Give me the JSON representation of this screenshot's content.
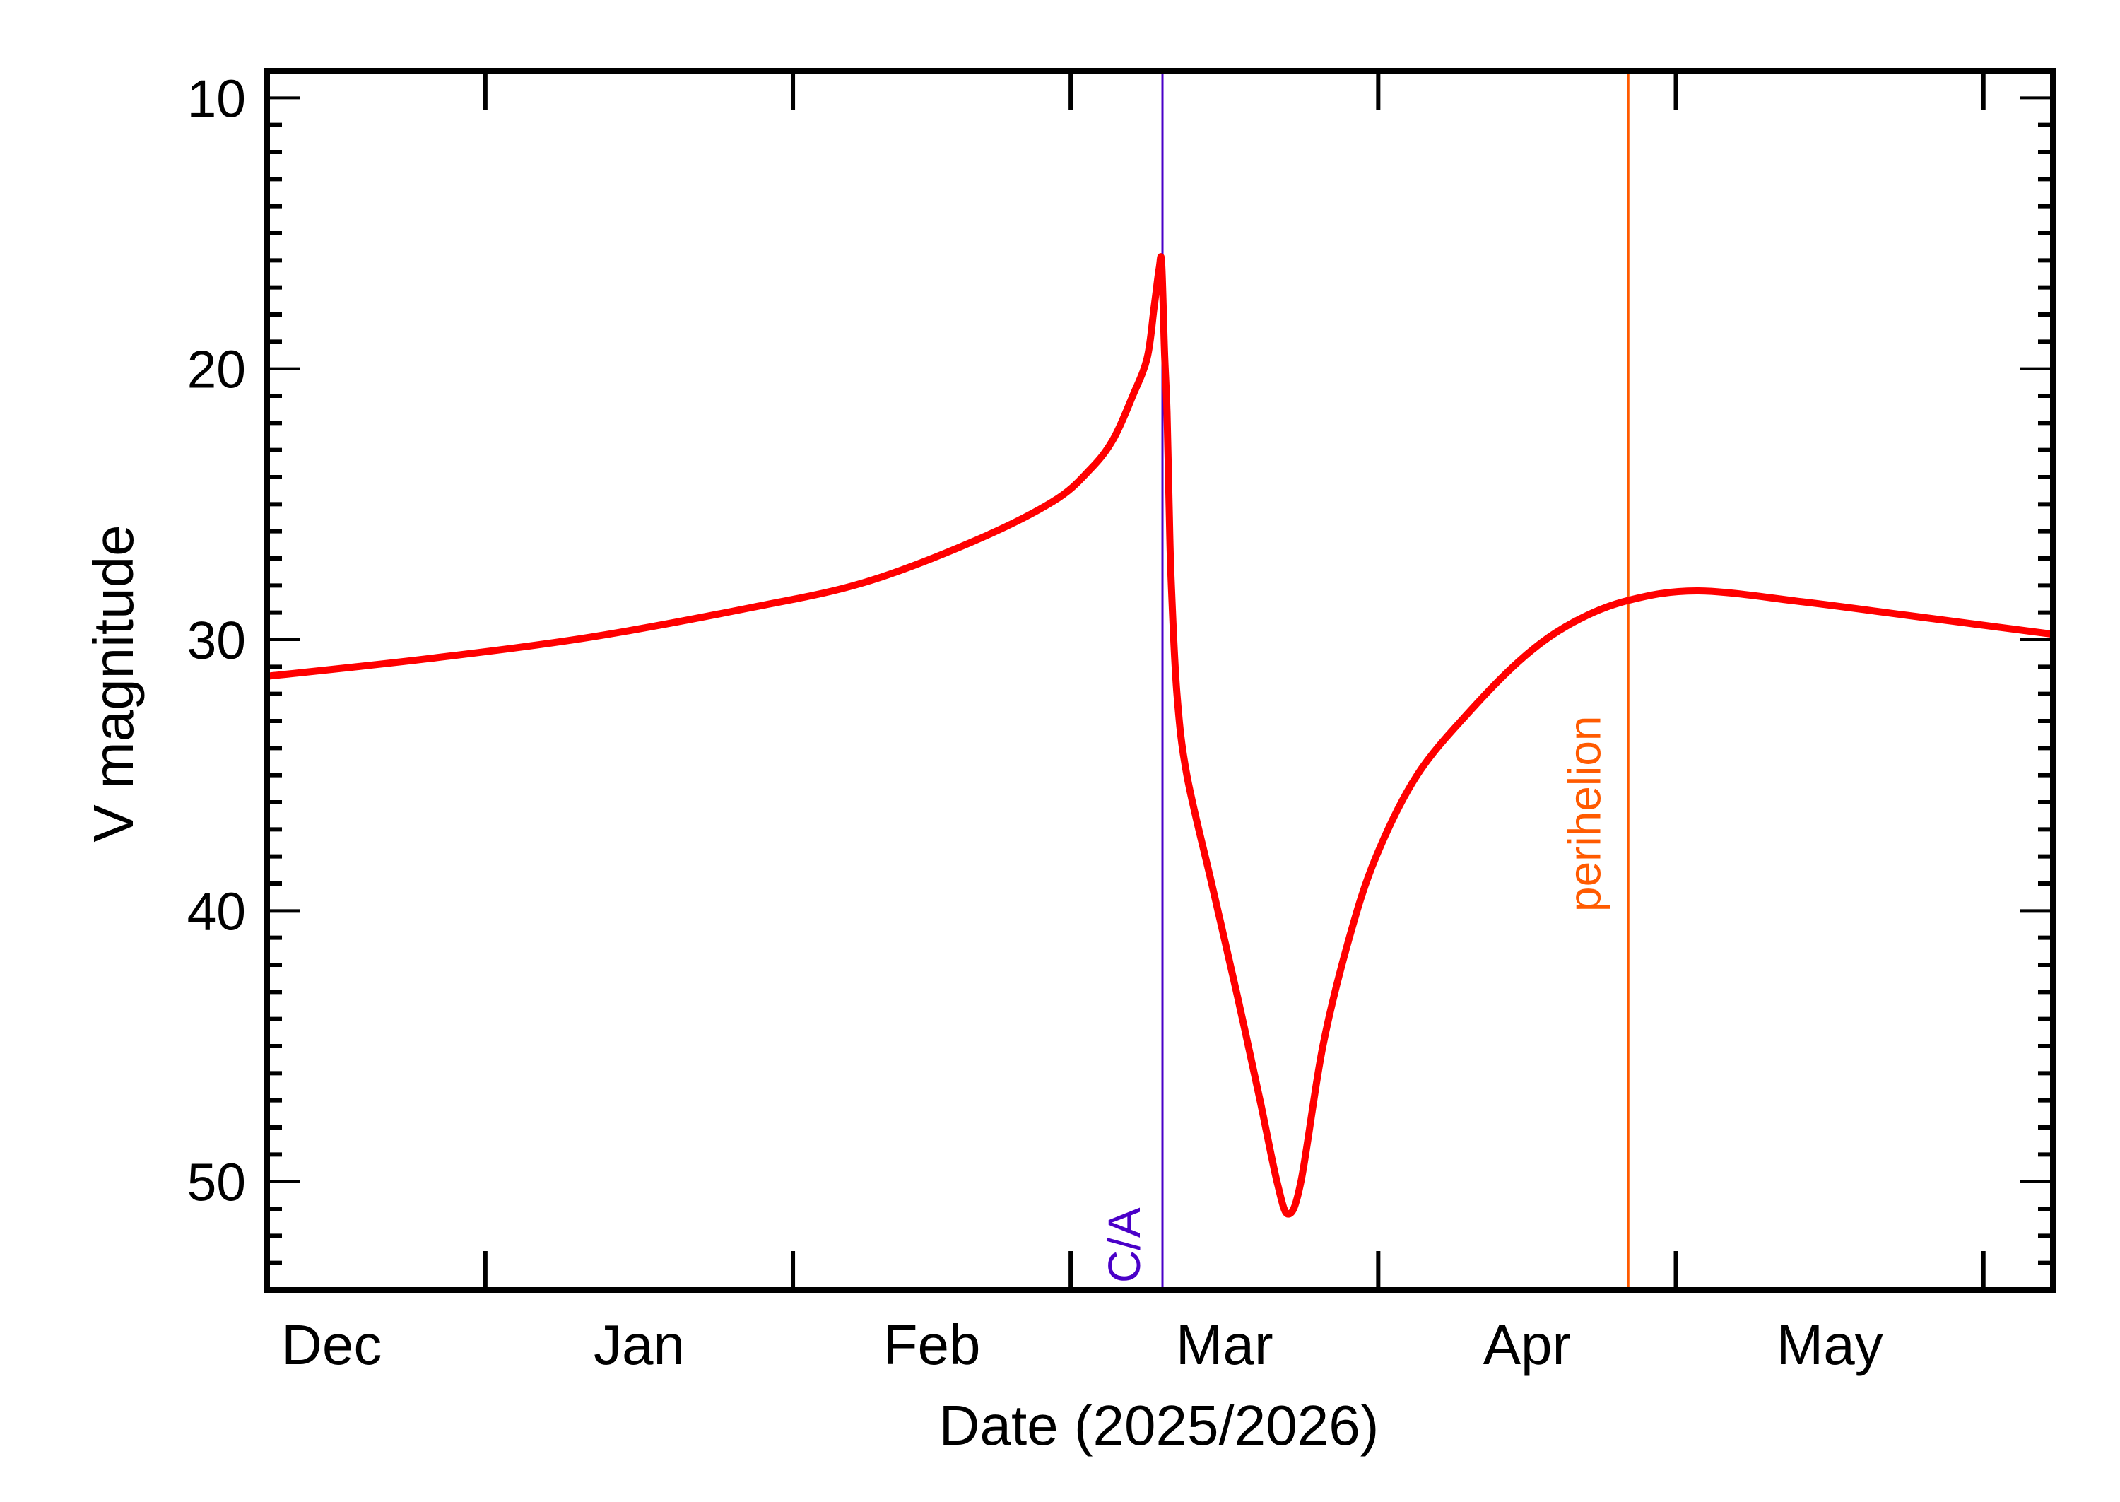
{
  "chart_data": {
    "type": "line",
    "title": "",
    "xlabel": "Date (2025/2026)",
    "ylabel": "V magnitude",
    "xlim": [
      "2025-12-10T00:00",
      "2026-06-08T00:00"
    ],
    "ylim": [
      9,
      54
    ],
    "y_inverted": true,
    "grid": false,
    "legend": "none",
    "yticks": [
      10,
      20,
      30,
      40,
      50
    ],
    "ytick_labels": [
      "10",
      "20",
      "30",
      "40",
      "50"
    ],
    "y_minor_step": 1,
    "xticks": [
      "2026-01-01",
      "2026-02-01",
      "2026-03-01",
      "2026-04-01",
      "2026-05-01",
      "2026-06-01"
    ],
    "xtick_labels": [
      {
        "text": "Dec",
        "month": "2025-12"
      },
      {
        "text": "Jan",
        "month": "2026-01"
      },
      {
        "text": "Feb",
        "month": "2026-02"
      },
      {
        "text": "Mar",
        "month": "2026-03"
      },
      {
        "text": "Apr",
        "month": "2026-04"
      },
      {
        "text": "May",
        "month": "2026-05"
      }
    ],
    "series": [
      {
        "color": "#ff0000",
        "points": [
          [
            "2025-12-10T00:00",
            31.35
          ],
          [
            "2025-12-26T06:00",
            30.7
          ],
          [
            "2026-01-11T17:00",
            29.9
          ],
          [
            "2026-01-28T00:00",
            28.8
          ],
          [
            "2026-02-08T02:00",
            27.9
          ],
          [
            "2026-02-19T00:00",
            26.4
          ],
          [
            "2026-02-27T05:00",
            24.9
          ],
          [
            "2026-03-03T00:00",
            23.7
          ],
          [
            "2026-03-05T07:00",
            22.6
          ],
          [
            "2026-03-07T06:00",
            21.0
          ],
          [
            "2026-03-08T17:00",
            19.6
          ],
          [
            "2026-03-09T10:00",
            17.7
          ],
          [
            "2026-03-09T22:00",
            16.3
          ],
          [
            "2026-03-10T04:00",
            16.1
          ],
          [
            "2026-03-10T11:00",
            19.4
          ],
          [
            "2026-03-10T17:00",
            21.6
          ],
          [
            "2026-03-10T22:00",
            25.0
          ],
          [
            "2026-03-11T03:00",
            27.8
          ],
          [
            "2026-03-11T17:00",
            32.0
          ],
          [
            "2026-03-12T17:00",
            35.0
          ],
          [
            "2026-03-15T05:00",
            39.0
          ],
          [
            "2026-03-17T17:00",
            43.0
          ],
          [
            "2026-03-20T02:00",
            47.0
          ],
          [
            "2026-03-21T19:00",
            50.0
          ],
          [
            "2026-03-22T22:00",
            51.2
          ],
          [
            "2026-03-24T05:00",
            50.0
          ],
          [
            "2026-03-26T10:00",
            45.0
          ],
          [
            "2026-03-29T02:00",
            41.0
          ],
          [
            "2026-03-31T19:00",
            38.0
          ],
          [
            "2026-04-04T22:00",
            35.0
          ],
          [
            "2026-04-10T08:00",
            32.6
          ],
          [
            "2026-04-15T19:00",
            30.6
          ],
          [
            "2026-04-20T17:00",
            29.35
          ],
          [
            "2026-04-26T05:00",
            28.55
          ],
          [
            "2026-05-03T07:00",
            28.2
          ],
          [
            "2026-05-13T17:00",
            28.6
          ],
          [
            "2026-05-24T07:00",
            29.1
          ],
          [
            "2026-06-08T00:00",
            29.8
          ]
        ]
      }
    ],
    "markers": [
      {
        "label": "C/A",
        "date": "2026-03-10T06:00",
        "color": "#4a00c8"
      },
      {
        "label": "perihelion",
        "date": "2026-04-26T05:00",
        "color": "#ff5a00"
      }
    ]
  }
}
